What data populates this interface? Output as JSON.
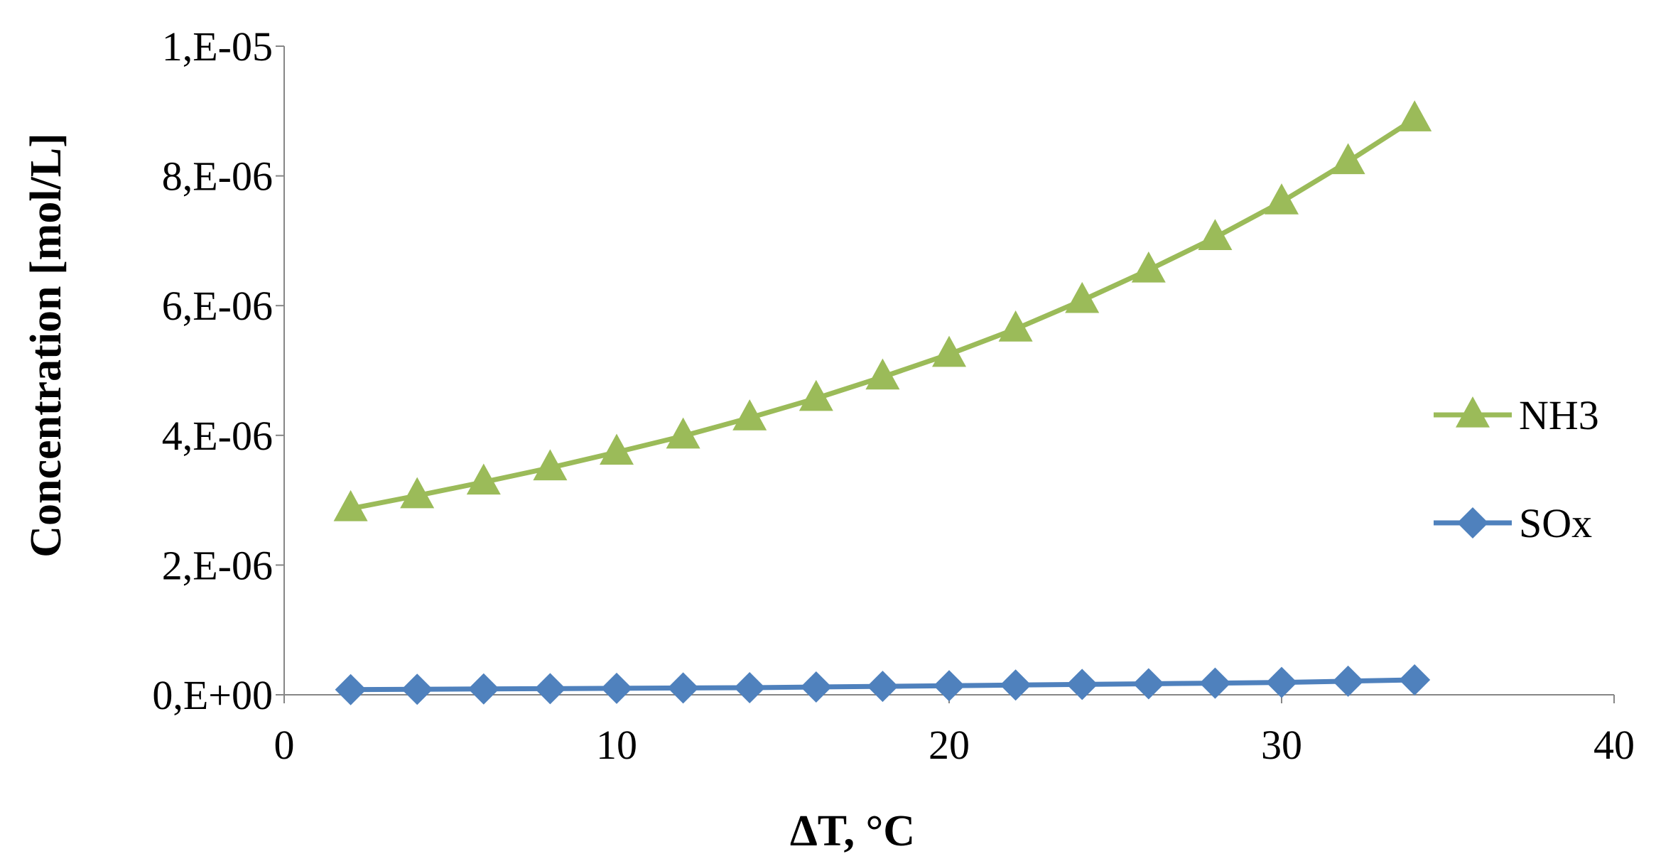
{
  "chart_data": {
    "type": "line",
    "title": "",
    "xlabel": "ΔT, °C",
    "ylabel": "Concentration  [mol/L]",
    "xlim": [
      0,
      40
    ],
    "ylim": [
      0,
      1e-05
    ],
    "x_ticks": [
      0,
      10,
      20,
      30,
      40
    ],
    "x_tick_labels": [
      "0",
      "10",
      "20",
      "30",
      "40"
    ],
    "y_ticks": [
      0,
      2e-06,
      4e-06,
      6e-06,
      8e-06,
      1e-05
    ],
    "y_tick_labels": [
      "0,E+00",
      "2,E-06",
      "4,E-06",
      "6,E-06",
      "8,E-06",
      "1,E-05"
    ],
    "grid": false,
    "legend_position": "right",
    "x": [
      2,
      4,
      6,
      8,
      10,
      12,
      14,
      16,
      18,
      20,
      22,
      24,
      26,
      28,
      30,
      32,
      34
    ],
    "series": [
      {
        "name": "NH3",
        "color": "#9bbb59",
        "marker": "triangle",
        "values": [
          2.87e-06,
          3.07e-06,
          3.28e-06,
          3.5e-06,
          3.74e-06,
          3.99e-06,
          4.27e-06,
          4.57e-06,
          4.9e-06,
          5.25e-06,
          5.64e-06,
          6.08e-06,
          6.55e-06,
          7.05e-06,
          7.6e-06,
          8.22e-06,
          8.88e-06
        ]
      },
      {
        "name": "SOx",
        "color": "#4f81bd",
        "marker": "diamond",
        "values": [
          8e-08,
          8.5e-08,
          9e-08,
          9.5e-08,
          1e-07,
          1.05e-07,
          1.1e-07,
          1.2e-07,
          1.3e-07,
          1.4e-07,
          1.5e-07,
          1.6e-07,
          1.7e-07,
          1.8e-07,
          1.9e-07,
          2.1e-07,
          2.3e-07
        ]
      }
    ]
  }
}
